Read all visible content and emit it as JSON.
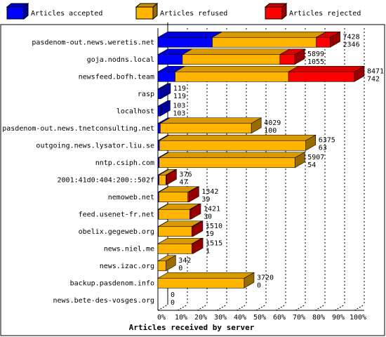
{
  "chart_data": {
    "type": "bar3d",
    "x_label": "Articles received by server",
    "categories": [
      "pasdenom-out.news.weretis.net",
      "goja.nodns.local",
      "newsfeed.bofh.team",
      "rasp",
      "localhost",
      "pasdenom-out.news.tnetconsulting.net",
      "outgoing.news.lysator.liu.se",
      "nntp.csiph.com",
      "2001:41d0:404:200::502f",
      "nemoweb.net",
      "feed.usenet-fr.net",
      "obelix.gegeweb.org",
      "news.niel.me",
      "news.izac.org",
      "backup.pasdenom.info",
      "news.bete-des-vosges.org"
    ],
    "totals": [
      7428,
      5899,
      8471,
      119,
      103,
      4029,
      6375,
      5907,
      376,
      1342,
      1421,
      1510,
      1515,
      342,
      3720,
      0
    ],
    "series": [
      {
        "name": "Articles accepted",
        "color": "#0000ff",
        "values": [
          2346,
          1055,
          742,
          119,
          103,
          100,
          63,
          54,
          47,
          39,
          30,
          19,
          1,
          0,
          0,
          0
        ]
      },
      {
        "name": "Articles refused",
        "color": "#ffb400",
        "values": [
          4482,
          4204,
          4889,
          0,
          0,
          3929,
          6312,
          5853,
          299,
          1253,
          1341,
          1441,
          1464,
          342,
          3720,
          0
        ]
      },
      {
        "name": "Articles rejected",
        "color": "#ff0000",
        "values": [
          600,
          640,
          2840,
          0,
          0,
          0,
          0,
          0,
          30,
          50,
          50,
          50,
          50,
          0,
          0,
          0
        ]
      }
    ],
    "xlim": [
      0,
      100
    ],
    "xticks": [
      {
        "value": 0,
        "label": "0%"
      },
      {
        "value": 10,
        "label": "10%"
      },
      {
        "value": 20,
        "label": "20%"
      },
      {
        "value": 30,
        "label": "30%"
      },
      {
        "value": 40,
        "label": "40%"
      },
      {
        "value": 50,
        "label": "50%"
      },
      {
        "value": 60,
        "label": "60%"
      },
      {
        "value": 70,
        "label": "70%"
      },
      {
        "value": 80,
        "label": "80%"
      },
      {
        "value": 90,
        "label": "90%"
      },
      {
        "value": 100,
        "label": "100%"
      }
    ],
    "grid": true
  }
}
